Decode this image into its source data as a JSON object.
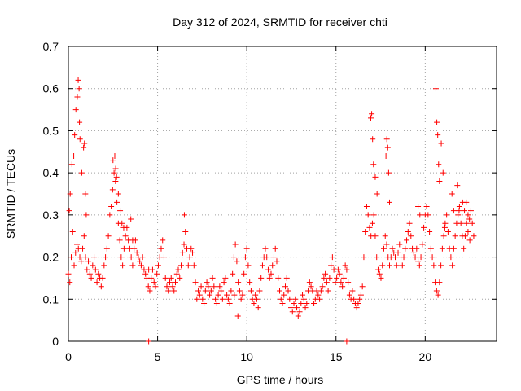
{
  "chart_data": {
    "type": "scatter",
    "title": "Day 312 of 2024, SRMTID for receiver chti",
    "xlabel": "GPS time / hours",
    "ylabel": "SRMTID / TECUs",
    "xlim": [
      0,
      24
    ],
    "ylim": [
      0,
      0.7
    ],
    "xticks": [
      0,
      5,
      10,
      15,
      20
    ],
    "yticks": [
      0,
      0.1,
      0.2,
      0.3,
      0.4,
      0.5,
      0.6,
      0.7
    ],
    "xtick_labels": [
      "0",
      "5",
      "10",
      "15",
      "20"
    ],
    "ytick_labels": [
      "0",
      "0.1",
      "0.2",
      "0.3",
      "0.4",
      "0.5",
      "0.6",
      "0.7"
    ],
    "grid": true,
    "marker": "plus",
    "color": "#ff0000",
    "series": [
      {
        "name": "SRMTID",
        "x": [
          0.0,
          0.08,
          0.16,
          0.24,
          0.32,
          0.4,
          0.48,
          0.56,
          0.64,
          0.72,
          0.8,
          0.88,
          0.96,
          1.04,
          1.12,
          1.2,
          1.28,
          1.36,
          1.44,
          1.52,
          1.6,
          1.68,
          1.76,
          1.84,
          1.92,
          2.0,
          2.08,
          2.16,
          2.24,
          2.32,
          2.4,
          2.48,
          2.56,
          2.64,
          2.72,
          2.8,
          2.88,
          2.96,
          3.04,
          3.12,
          3.2,
          3.28,
          3.36,
          3.44,
          3.52,
          3.6,
          3.68,
          3.76,
          3.84,
          3.92,
          4.0,
          4.08,
          4.16,
          4.24,
          4.32,
          4.4,
          4.48,
          4.56,
          4.64,
          4.72,
          4.8,
          4.88,
          4.96,
          5.04,
          5.12,
          5.2,
          5.28,
          5.36,
          5.44,
          5.52,
          5.6,
          5.68,
          5.76,
          5.84,
          5.92,
          6.0,
          6.08,
          6.16,
          6.24,
          6.32,
          6.4,
          6.48,
          6.56,
          6.64,
          6.72,
          6.8,
          6.88,
          6.96,
          7.04,
          7.12,
          7.2,
          7.28,
          7.36,
          7.44,
          7.52,
          7.6,
          7.68,
          7.76,
          7.84,
          7.92,
          8.0,
          8.08,
          8.16,
          8.24,
          8.32,
          8.4,
          8.48,
          8.56,
          8.64,
          8.72,
          8.8,
          8.88,
          8.96,
          9.04,
          9.12,
          9.2,
          9.28,
          9.36,
          9.44,
          9.52,
          9.6,
          9.68,
          9.76,
          9.84,
          9.92,
          10.0,
          10.08,
          10.16,
          10.24,
          10.32,
          10.4,
          10.48,
          10.56,
          10.64,
          10.72,
          10.8,
          10.88,
          10.96,
          11.04,
          11.12,
          11.2,
          11.28,
          11.36,
          11.44,
          11.52,
          11.6,
          11.68,
          11.76,
          11.84,
          11.92,
          12.0,
          12.08,
          12.16,
          12.24,
          12.32,
          12.4,
          12.48,
          12.56,
          12.64,
          12.72,
          12.8,
          12.88,
          12.96,
          13.04,
          13.12,
          13.2,
          13.28,
          13.36,
          13.44,
          13.52,
          13.6,
          13.68,
          13.76,
          13.84,
          13.92,
          14.0,
          14.08,
          14.16,
          14.24,
          14.32,
          14.4,
          14.48,
          14.56,
          14.64,
          14.72,
          14.8,
          14.88,
          14.96,
          15.04,
          15.12,
          15.2,
          15.28,
          15.36,
          15.44,
          15.52,
          15.6,
          15.68,
          15.76,
          15.84,
          15.92,
          16.0,
          16.08,
          16.16,
          16.24,
          16.32,
          16.4,
          16.48,
          16.56,
          16.64,
          16.72,
          16.8,
          16.88,
          16.96,
          17.04,
          17.12,
          17.2,
          17.28,
          17.36,
          17.44,
          17.52,
          17.6,
          17.68,
          17.76,
          17.84,
          17.92,
          18.0,
          18.08,
          18.16,
          18.24,
          18.32,
          18.4,
          18.48,
          18.56,
          18.64,
          18.72,
          18.8,
          18.88,
          18.96,
          19.04,
          19.12,
          19.2,
          19.28,
          19.36,
          19.44,
          19.52,
          19.6,
          19.68,
          19.76,
          19.84,
          19.92,
          20.0,
          20.08,
          20.16,
          20.24,
          20.32,
          20.4,
          20.48,
          20.56,
          20.64,
          20.72,
          20.8,
          20.88,
          20.96,
          21.04,
          21.12,
          21.2,
          21.28,
          21.36,
          21.44,
          21.52,
          21.6,
          21.68,
          21.76,
          21.84,
          21.92,
          22.0,
          22.08,
          22.16,
          22.24,
          22.32,
          22.4,
          22.48,
          22.56,
          22.64,
          22.72,
          0.05,
          0.1,
          0.2,
          0.3,
          0.35,
          0.42,
          0.5,
          0.55,
          0.6,
          0.62,
          0.65,
          0.75,
          0.85,
          0.9,
          0.95,
          1.0,
          2.5,
          2.6,
          2.65,
          2.7,
          2.8,
          2.9,
          3.0,
          3.1,
          3.5,
          3.6,
          4.5,
          6.5,
          9.3,
          9.5,
          16.95,
          17.0,
          17.05,
          17.1,
          17.2,
          17.3,
          17.8,
          17.85,
          17.9,
          17.95,
          18.0,
          19.6,
          19.7,
          20.6,
          20.65,
          20.7,
          20.75,
          20.8,
          20.9,
          21.0,
          21.1,
          21.5,
          21.6,
          21.8,
          21.9,
          22.1,
          22.2,
          22.3,
          22.4,
          22.5,
          4.5,
          15.6
        ],
        "y": [
          0.16,
          0.14,
          0.2,
          0.26,
          0.18,
          0.21,
          0.23,
          0.22,
          0.2,
          0.19,
          0.22,
          0.25,
          0.2,
          0.17,
          0.19,
          0.16,
          0.15,
          0.18,
          0.2,
          0.17,
          0.14,
          0.16,
          0.15,
          0.13,
          0.15,
          0.18,
          0.2,
          0.22,
          0.25,
          0.3,
          0.32,
          0.36,
          0.4,
          0.38,
          0.33,
          0.28,
          0.24,
          0.2,
          0.18,
          0.22,
          0.25,
          0.27,
          0.24,
          0.22,
          0.2,
          0.18,
          0.22,
          0.24,
          0.21,
          0.2,
          0.19,
          0.18,
          0.2,
          0.17,
          0.16,
          0.15,
          0.13,
          0.12,
          0.15,
          0.17,
          0.14,
          0.13,
          0.16,
          0.18,
          0.2,
          0.22,
          0.24,
          0.2,
          0.15,
          0.13,
          0.12,
          0.14,
          0.15,
          0.13,
          0.12,
          0.14,
          0.16,
          0.17,
          0.15,
          0.18,
          0.21,
          0.23,
          0.26,
          0.22,
          0.18,
          0.2,
          0.22,
          0.21,
          0.18,
          0.14,
          0.1,
          0.12,
          0.11,
          0.13,
          0.1,
          0.09,
          0.12,
          0.14,
          0.13,
          0.11,
          0.12,
          0.15,
          0.13,
          0.1,
          0.09,
          0.11,
          0.13,
          0.12,
          0.1,
          0.14,
          0.15,
          0.11,
          0.1,
          0.09,
          0.12,
          0.16,
          0.2,
          0.23,
          0.19,
          0.14,
          0.12,
          0.1,
          0.11,
          0.16,
          0.2,
          0.22,
          0.18,
          0.14,
          0.12,
          0.1,
          0.09,
          0.11,
          0.1,
          0.08,
          0.12,
          0.15,
          0.18,
          0.2,
          0.22,
          0.2,
          0.17,
          0.15,
          0.16,
          0.18,
          0.2,
          0.22,
          0.19,
          0.15,
          0.12,
          0.1,
          0.09,
          0.11,
          0.13,
          0.15,
          0.12,
          0.1,
          0.08,
          0.07,
          0.09,
          0.1,
          0.08,
          0.06,
          0.07,
          0.09,
          0.11,
          0.1,
          0.08,
          0.09,
          0.12,
          0.14,
          0.13,
          0.12,
          0.09,
          0.1,
          0.12,
          0.11,
          0.1,
          0.12,
          0.13,
          0.15,
          0.16,
          0.14,
          0.12,
          0.15,
          0.18,
          0.2,
          0.17,
          0.14,
          0.15,
          0.17,
          0.16,
          0.14,
          0.13,
          0.15,
          0.18,
          0.17,
          0.14,
          0.11,
          0.1,
          0.12,
          0.1,
          0.09,
          0.08,
          0.09,
          0.1,
          0.11,
          0.13,
          0.2,
          0.26,
          0.32,
          0.3,
          0.27,
          0.25,
          0.28,
          0.3,
          0.25,
          0.2,
          0.17,
          0.16,
          0.15,
          0.18,
          0.22,
          0.25,
          0.23,
          0.2,
          0.18,
          0.2,
          0.22,
          0.21,
          0.2,
          0.18,
          0.21,
          0.23,
          0.2,
          0.18,
          0.2,
          0.22,
          0.24,
          0.26,
          0.28,
          0.25,
          0.22,
          0.21,
          0.2,
          0.22,
          0.19,
          0.18,
          0.2,
          0.23,
          0.27,
          0.3,
          0.32,
          0.3,
          0.26,
          0.22,
          0.2,
          0.18,
          0.14,
          0.12,
          0.11,
          0.14,
          0.18,
          0.22,
          0.25,
          0.28,
          0.3,
          0.26,
          0.22,
          0.2,
          0.18,
          0.22,
          0.25,
          0.28,
          0.3,
          0.32,
          0.28,
          0.25,
          0.22,
          0.25,
          0.28,
          0.26,
          0.29,
          0.31,
          0.28,
          0.25,
          0.31,
          0.35,
          0.42,
          0.44,
          0.49,
          0.55,
          0.58,
          0.62,
          0.6,
          0.52,
          0.48,
          0.4,
          0.46,
          0.47,
          0.35,
          0.3,
          0.43,
          0.44,
          0.41,
          0.39,
          0.35,
          0.31,
          0.28,
          0.27,
          0.29,
          0.24,
          0.17,
          0.3,
          0.11,
          0.06,
          0.53,
          0.54,
          0.48,
          0.42,
          0.39,
          0.35,
          0.44,
          0.48,
          0.46,
          0.4,
          0.33,
          0.32,
          0.3,
          0.6,
          0.52,
          0.49,
          0.42,
          0.38,
          0.47,
          0.4,
          0.27,
          0.35,
          0.31,
          0.37,
          0.31,
          0.33,
          0.31,
          0.33,
          0.3,
          0.24,
          0.0,
          0.0
        ]
      }
    ]
  }
}
